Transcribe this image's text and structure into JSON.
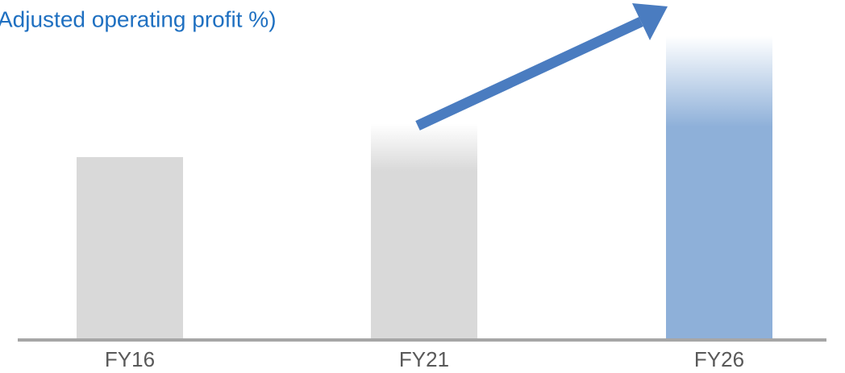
{
  "chart_data": {
    "type": "bar",
    "title": "Adjusted operating profit %)",
    "categories": [
      "FY16",
      "FY21",
      "FY26"
    ],
    "values": [
      60,
      71,
      100
    ],
    "colors": [
      "#d9d9d9",
      "#d9d9d9",
      "#8eb0d9"
    ],
    "ylim": [
      0,
      100
    ]
  }
}
